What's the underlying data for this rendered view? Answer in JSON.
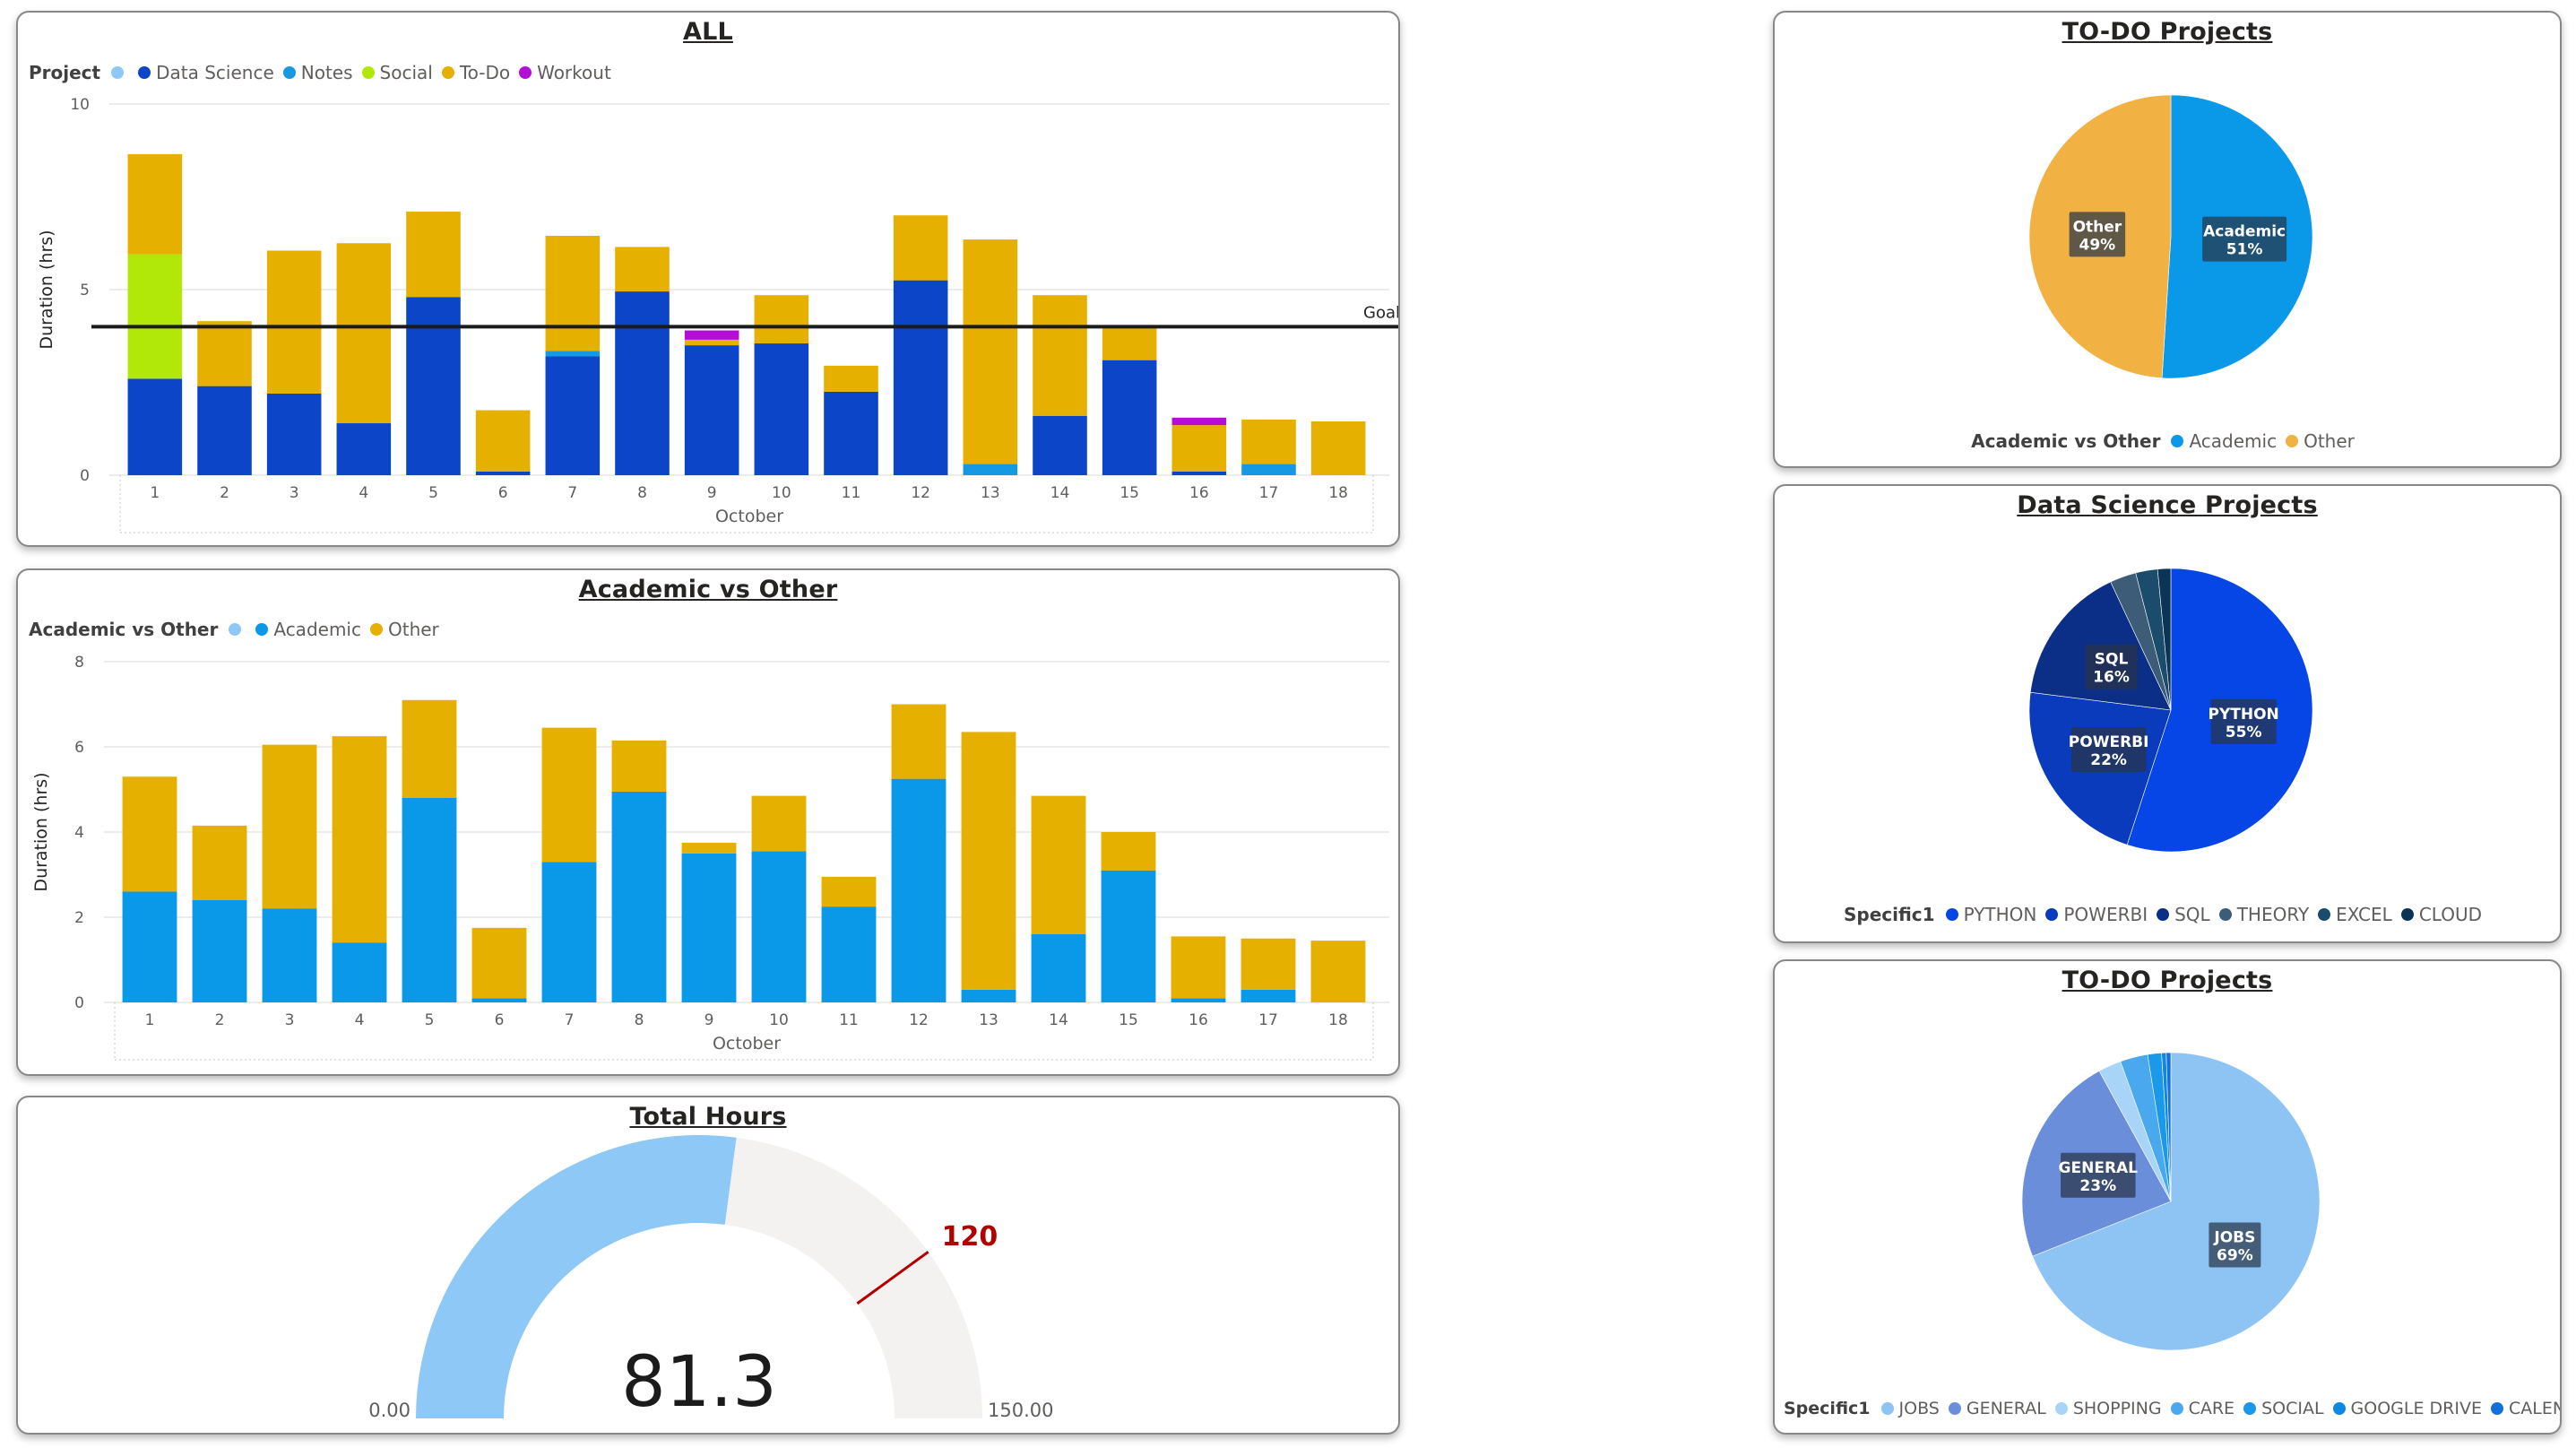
{
  "charts": [
    {
      "title": "ALL",
      "legend": {
        "title": "Project",
        "items": [
          {
            "label": "",
            "color": "#8ec8f6"
          },
          {
            "label": "Data Science",
            "color": "#0c45c8"
          },
          {
            "label": "Notes",
            "color": "#1699e2"
          },
          {
            "label": "Social",
            "color": "#b1e80a"
          },
          {
            "label": "To-Do",
            "color": "#e6b000"
          },
          {
            "label": "Workout",
            "color": "#b40ed6"
          }
        ]
      }
    },
    {
      "title": "Academic vs Other",
      "legend": {
        "title": "Academic vs Other",
        "items": [
          {
            "label": "",
            "color": "#8ec8f6"
          },
          {
            "label": "Academic",
            "color": "#0a99e8"
          },
          {
            "label": "Other",
            "color": "#e6b000"
          }
        ]
      }
    },
    {
      "title": "Total Hours",
      "value_label": "81.3",
      "min_label": "0.00",
      "max_label": "150.00",
      "target_label": "120"
    },
    {
      "title": "TO-DO Projects",
      "legend": {
        "title": "Academic vs Other",
        "items": [
          {
            "label": "Academic",
            "color": "#0a99e8"
          },
          {
            "label": "Other",
            "color": "#f2b143"
          }
        ]
      }
    },
    {
      "title": "Data Science Projects",
      "legend": {
        "title": "Specific1",
        "items": [
          {
            "label": "PYTHON",
            "color": "#0645e6"
          },
          {
            "label": "POWERBI",
            "color": "#0b3bbd"
          },
          {
            "label": "SQL",
            "color": "#0b2e86"
          },
          {
            "label": "THEORY",
            "color": "#3c5c78"
          },
          {
            "label": "EXCEL",
            "color": "#1c4c6c"
          },
          {
            "label": "CLOUD",
            "color": "#0c3454"
          }
        ]
      }
    },
    {
      "title": "TO-DO Projects",
      "legend": {
        "title": "Specific1",
        "items": [
          {
            "label": "JOBS",
            "color": "#8ec4f4"
          },
          {
            "label": "GENERAL",
            "color": "#6b8edb"
          },
          {
            "label": "SHOPPING",
            "color": "#a8d4f8"
          },
          {
            "label": "CARE",
            "color": "#4aa9ee"
          },
          {
            "label": "SOCIAL",
            "color": "#1a98ea"
          },
          {
            "label": "GOOGLE DRIVE",
            "color": "#0f88df"
          },
          {
            "label": "CALENDAR",
            "color": "#1570d8"
          }
        ]
      }
    }
  ],
  "chart_data": [
    {
      "type": "bar",
      "stacked": true,
      "title": "ALL",
      "xlabel": "October",
      "ylabel": "Duration (hrs)",
      "ylim": [
        0,
        10
      ],
      "yticks": [
        "0",
        "5",
        "10"
      ],
      "grid": true,
      "legend_position": "top-left",
      "categories": [
        "1",
        "2",
        "3",
        "4",
        "5",
        "6",
        "7",
        "8",
        "9",
        "10",
        "11",
        "12",
        "13",
        "14",
        "15",
        "16",
        "17",
        "18"
      ],
      "series": [
        {
          "name": "Data Science",
          "color": "#0c45c8",
          "values": [
            2.6,
            2.4,
            2.2,
            1.4,
            4.8,
            0.1,
            3.2,
            4.95,
            3.5,
            3.55,
            2.25,
            5.25,
            0,
            1.6,
            3.1,
            0.1,
            0,
            0
          ]
        },
        {
          "name": "Notes",
          "color": "#1699e2",
          "values": [
            0,
            0,
            0,
            0,
            0,
            0,
            0.15,
            0,
            0,
            0,
            0,
            0,
            0.3,
            0,
            0,
            0,
            0.3,
            0
          ]
        },
        {
          "name": "Social",
          "color": "#b1e80a",
          "values": [
            3.35,
            0,
            0,
            0,
            0,
            0,
            0,
            0,
            0,
            0,
            0,
            0,
            0,
            0,
            0,
            0,
            0,
            0
          ]
        },
        {
          "name": "To-Do",
          "color": "#e6b000",
          "values": [
            2.7,
            1.75,
            3.85,
            4.85,
            2.3,
            1.65,
            3.1,
            1.2,
            0.15,
            1.3,
            0.7,
            1.75,
            6.05,
            3.25,
            0.9,
            1.25,
            1.2,
            1.45
          ]
        },
        {
          "name": "Workout",
          "color": "#b40ed6",
          "values": [
            0,
            0,
            0,
            0,
            0,
            0,
            0,
            0,
            0.25,
            0,
            0,
            0,
            0,
            0,
            0,
            0.2,
            0,
            0
          ]
        }
      ],
      "reference_line": {
        "label": "Goal",
        "value": 4.0
      }
    },
    {
      "type": "bar",
      "stacked": true,
      "title": "Academic vs Other",
      "xlabel": "October",
      "ylabel": "Duration (hrs)",
      "ylim": [
        0,
        8
      ],
      "yticks": [
        "0",
        "2",
        "4",
        "6",
        "8"
      ],
      "grid": true,
      "legend_position": "top-left",
      "categories": [
        "1",
        "2",
        "3",
        "4",
        "5",
        "6",
        "7",
        "8",
        "9",
        "10",
        "11",
        "12",
        "13",
        "14",
        "15",
        "16",
        "17",
        "18"
      ],
      "series": [
        {
          "name": "Academic",
          "color": "#0a99e8",
          "values": [
            2.6,
            2.4,
            2.2,
            1.4,
            4.8,
            0.1,
            3.3,
            4.95,
            3.5,
            3.55,
            2.25,
            5.25,
            0.3,
            1.6,
            3.1,
            0.1,
            0.3,
            0
          ]
        },
        {
          "name": "Other",
          "color": "#e6b000",
          "values": [
            2.7,
            1.75,
            3.85,
            4.85,
            2.3,
            1.65,
            3.15,
            1.2,
            0.25,
            1.3,
            0.7,
            1.75,
            6.05,
            3.25,
            0.9,
            1.45,
            1.2,
            1.45
          ]
        }
      ]
    },
    {
      "type": "gauge",
      "title": "Total Hours",
      "value": 81.3,
      "min": 0,
      "max": 150,
      "target": 120,
      "fill_color": "#8ec8f6",
      "track_color": "#f3f2f1",
      "target_color": "#b00000"
    },
    {
      "type": "pie",
      "title": "TO-DO Projects",
      "slices": [
        {
          "label": "Academic",
          "value": 51,
          "color": "#0a99e8",
          "text": "Academic",
          "pct": "51%"
        },
        {
          "label": "Other",
          "value": 49,
          "color": "#f2b143",
          "text": "Other",
          "pct": "49%"
        }
      ],
      "legend_position": "bottom"
    },
    {
      "type": "pie",
      "title": "Data Science Projects",
      "slices": [
        {
          "label": "PYTHON",
          "value": 55,
          "color": "#0645e6",
          "text": "PYTHON",
          "pct": "55%"
        },
        {
          "label": "POWERBI",
          "value": 22,
          "color": "#0b3bbd",
          "text": "POWERBI",
          "pct": "22%"
        },
        {
          "label": "SQL",
          "value": 16,
          "color": "#0b2e86",
          "text": "SQL",
          "pct": "16%"
        },
        {
          "label": "THEORY",
          "value": 3,
          "color": "#3c5c78",
          "text": "",
          "pct": ""
        },
        {
          "label": "EXCEL",
          "value": 2.5,
          "color": "#1c4c6c",
          "text": "",
          "pct": ""
        },
        {
          "label": "CLOUD",
          "value": 1.5,
          "color": "#0c3454",
          "text": "",
          "pct": ""
        }
      ],
      "legend_position": "bottom"
    },
    {
      "type": "pie",
      "title": "TO-DO Projects",
      "slices": [
        {
          "label": "JOBS",
          "value": 69,
          "color": "#8ec4f4",
          "text": "JOBS",
          "pct": "69%"
        },
        {
          "label": "GENERAL",
          "value": 23,
          "color": "#6b8edb",
          "text": "GENERAL",
          "pct": "23%"
        },
        {
          "label": "SHOPPING",
          "value": 2.5,
          "color": "#a8d4f8",
          "text": "",
          "pct": ""
        },
        {
          "label": "CARE",
          "value": 3,
          "color": "#4aa9ee",
          "text": "",
          "pct": ""
        },
        {
          "label": "SOCIAL",
          "value": 1.5,
          "color": "#1a98ea",
          "text": "",
          "pct": ""
        },
        {
          "label": "GOOGLE DRIVE",
          "value": 0.5,
          "color": "#0f88df",
          "text": "",
          "pct": ""
        },
        {
          "label": "CALENDAR",
          "value": 0.5,
          "color": "#1570d8",
          "text": "",
          "pct": ""
        }
      ],
      "legend_position": "bottom"
    }
  ]
}
